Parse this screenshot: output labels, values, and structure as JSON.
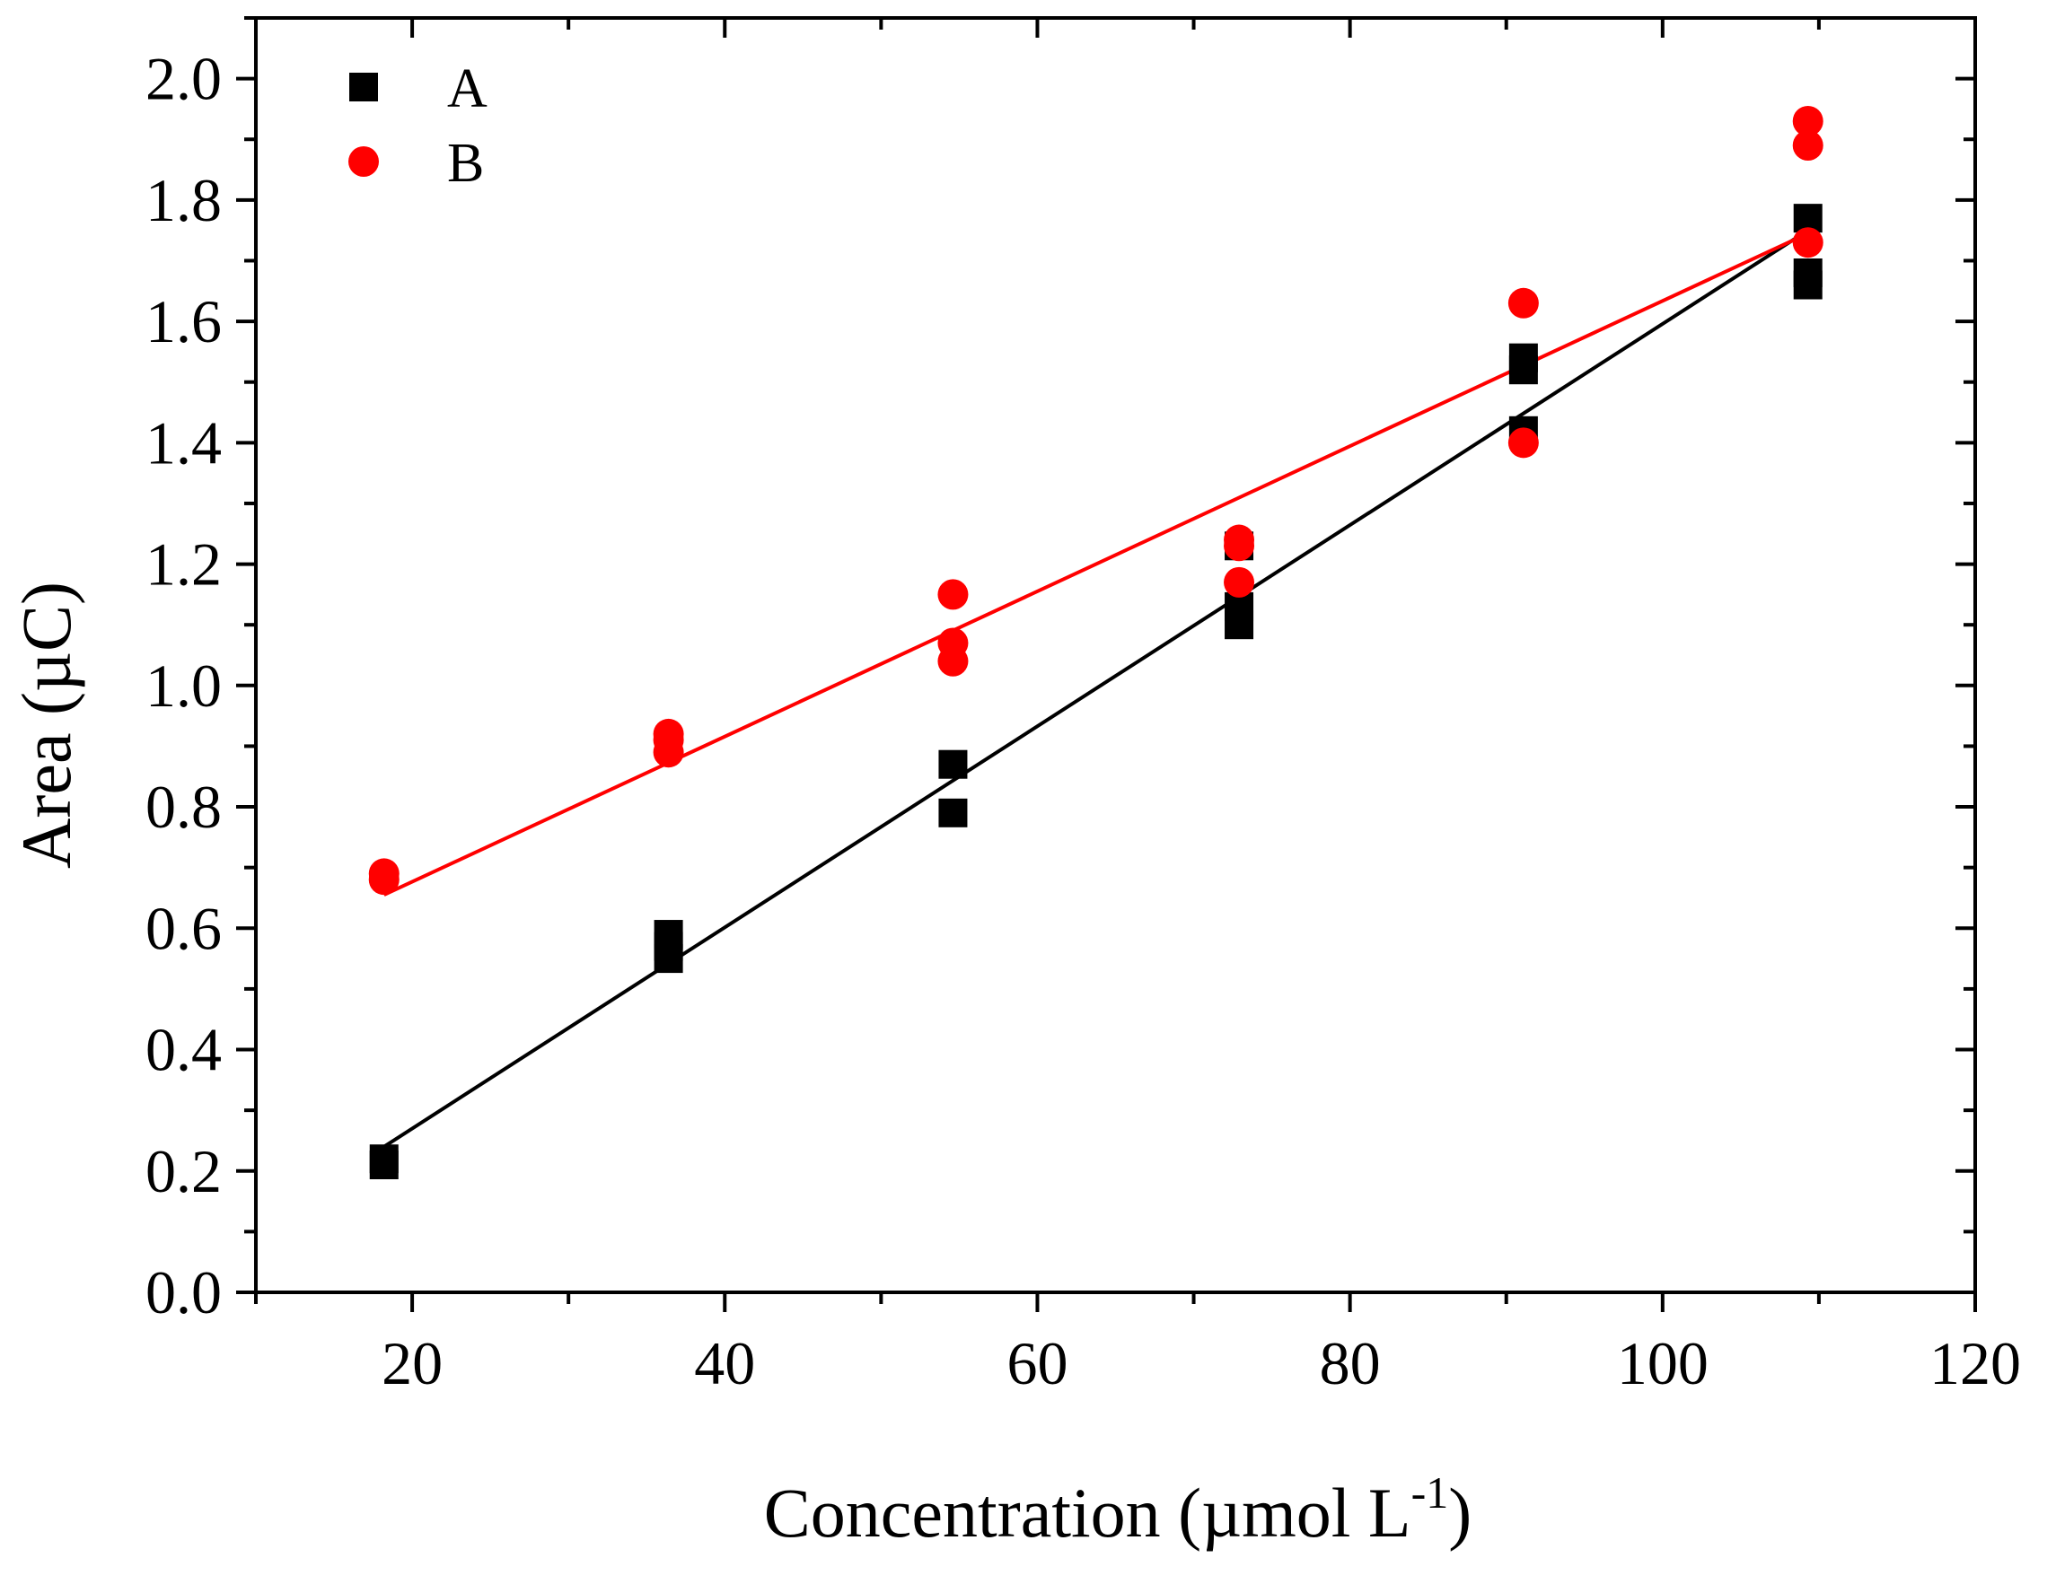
{
  "chart_data": {
    "type": "scatter",
    "title": "",
    "xlabel": "Concentration (µmol L",
    "xlabel_superscript": "-1",
    "xlabel_close": ")",
    "ylabel": "Area (µC)",
    "xlim": [
      10,
      120
    ],
    "ylim": [
      0.0,
      2.1
    ],
    "x_ticks": [
      20,
      40,
      60,
      80,
      100,
      120
    ],
    "x_tick_labels": [
      "20",
      "40",
      "60",
      "80",
      "100",
      "120"
    ],
    "y_ticks": [
      0.0,
      0.2,
      0.4,
      0.6,
      0.8,
      1.0,
      1.2,
      1.4,
      1.6,
      1.8,
      2.0
    ],
    "y_tick_labels": [
      "0.0",
      "0.2",
      "0.4",
      "0.6",
      "0.8",
      "1.0",
      "1.2",
      "1.4",
      "1.6",
      "1.8",
      "2.0"
    ],
    "grid": false,
    "legend_position": "top-left",
    "series": [
      {
        "name": "A",
        "marker": "square",
        "color": "#000000",
        "points": [
          [
            18.2,
            0.21
          ],
          [
            18.2,
            0.22
          ],
          [
            36.4,
            0.55
          ],
          [
            36.4,
            0.57
          ],
          [
            36.4,
            0.59
          ],
          [
            54.6,
            0.79
          ],
          [
            54.6,
            0.87
          ],
          [
            72.9,
            1.1
          ],
          [
            72.9,
            1.13
          ],
          [
            72.9,
            1.23
          ],
          [
            91.1,
            1.42
          ],
          [
            91.1,
            1.52
          ],
          [
            91.1,
            1.54
          ],
          [
            109.3,
            1.66
          ],
          [
            109.3,
            1.68
          ],
          [
            109.3,
            1.77
          ]
        ],
        "fit": {
          "x": [
            18.2,
            109.3
          ],
          "y": [
            0.24,
            1.75
          ],
          "color": "#000000"
        }
      },
      {
        "name": "B",
        "marker": "circle",
        "color": "#ff0000",
        "points": [
          [
            18.2,
            0.68
          ],
          [
            18.2,
            0.69
          ],
          [
            36.4,
            0.89
          ],
          [
            36.4,
            0.91
          ],
          [
            36.4,
            0.92
          ],
          [
            54.6,
            1.04
          ],
          [
            54.6,
            1.07
          ],
          [
            54.6,
            1.15
          ],
          [
            72.9,
            1.17
          ],
          [
            72.9,
            1.23
          ],
          [
            72.9,
            1.24
          ],
          [
            91.1,
            1.4
          ],
          [
            91.1,
            1.63
          ],
          [
            109.3,
            1.73
          ],
          [
            109.3,
            1.89
          ],
          [
            109.3,
            1.93
          ]
        ],
        "fit": {
          "x": [
            18.2,
            109.3
          ],
          "y": [
            0.655,
            1.745
          ],
          "color": "#ff0000"
        }
      }
    ]
  }
}
